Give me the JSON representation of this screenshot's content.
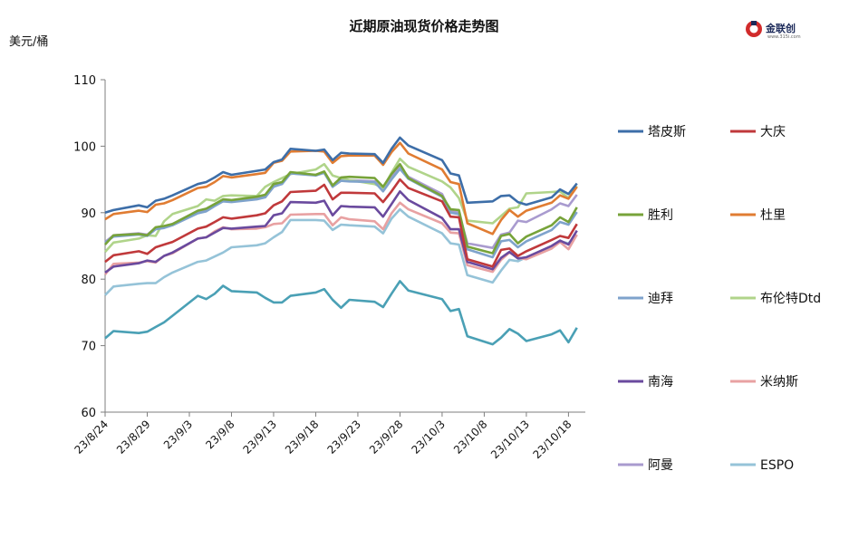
{
  "chart_data": {
    "type": "line",
    "title": "近期原油现货价格走势图",
    "ylabel": "美元/桶",
    "xlabel": "",
    "ylim": [
      60,
      110
    ],
    "yticks": [
      60,
      70,
      80,
      90,
      100,
      110
    ],
    "xrange": [
      "2023-08-24",
      "2023-10-20"
    ],
    "xticks": [
      {
        "label": "23/8/24",
        "date": "2023-08-24"
      },
      {
        "label": "23/8/29",
        "date": "2023-08-29"
      },
      {
        "label": "23/9/3",
        "date": "2023-09-03"
      },
      {
        "label": "23/9/8",
        "date": "2023-09-08"
      },
      {
        "label": "23/9/13",
        "date": "2023-09-13"
      },
      {
        "label": "23/9/18",
        "date": "2023-09-18"
      },
      {
        "label": "23/9/23",
        "date": "2023-09-23"
      },
      {
        "label": "23/9/28",
        "date": "2023-09-28"
      },
      {
        "label": "23/10/3",
        "date": "2023-10-03"
      },
      {
        "label": "23/10/8",
        "date": "2023-10-08"
      },
      {
        "label": "23/10/13",
        "date": "2023-10-13"
      },
      {
        "label": "23/10/18",
        "date": "2023-10-18"
      }
    ],
    "grid": "horizontal",
    "legend_position": "right",
    "dates": [
      "2023-08-24",
      "2023-08-25",
      "2023-08-28",
      "2023-08-29",
      "2023-08-30",
      "2023-08-31",
      "2023-09-01",
      "2023-09-04",
      "2023-09-05",
      "2023-09-06",
      "2023-09-07",
      "2023-09-08",
      "2023-09-11",
      "2023-09-12",
      "2023-09-13",
      "2023-09-14",
      "2023-09-15",
      "2023-09-18",
      "2023-09-19",
      "2023-09-20",
      "2023-09-21",
      "2023-09-22",
      "2023-09-25",
      "2023-09-26",
      "2023-09-27",
      "2023-09-28",
      "2023-09-29",
      "2023-10-03",
      "2023-10-04",
      "2023-10-05",
      "2023-10-06",
      "2023-10-09",
      "2023-10-10",
      "2023-10-11",
      "2023-10-12",
      "2023-10-13",
      "2023-10-16",
      "2023-10-17",
      "2023-10-18",
      "2023-10-19"
    ],
    "series": [
      {
        "name": "塔皮斯",
        "color": "#3d6ea8",
        "values": [
          90.0,
          90.4,
          91.1,
          90.8,
          91.8,
          92.1,
          92.6,
          94.3,
          94.6,
          95.3,
          96.1,
          95.7,
          96.3,
          96.5,
          97.6,
          98.0,
          99.6,
          99.3,
          99.5,
          97.9,
          99.0,
          98.9,
          98.8,
          97.5,
          99.6,
          101.3,
          100.1,
          97.9,
          95.9,
          95.6,
          91.5,
          91.7,
          92.5,
          92.6,
          91.6,
          91.2,
          92.3,
          93.5,
          92.8,
          94.4
        ]
      },
      {
        "name": "大庆",
        "color": "#c0393b",
        "values": [
          82.6,
          83.6,
          84.2,
          83.8,
          84.8,
          85.2,
          85.6,
          87.6,
          87.9,
          88.6,
          89.3,
          89.1,
          89.6,
          89.9,
          91.1,
          91.7,
          93.1,
          93.3,
          94.2,
          92.0,
          93.0,
          93.0,
          92.9,
          91.6,
          93.2,
          95.0,
          93.7,
          91.7,
          89.4,
          89.3,
          83.0,
          81.9,
          84.4,
          84.6,
          83.5,
          84.2,
          85.9,
          86.5,
          86.2,
          88.3
        ]
      },
      {
        "name": "胜利",
        "color": "#77a33a",
        "values": [
          85.2,
          86.6,
          86.8,
          86.6,
          87.8,
          88.0,
          88.3,
          90.3,
          90.6,
          91.3,
          92.0,
          91.9,
          92.4,
          92.7,
          94.3,
          94.6,
          96.1,
          95.7,
          96.2,
          94.1,
          95.3,
          95.4,
          95.2,
          93.9,
          95.8,
          97.3,
          95.2,
          92.5,
          90.5,
          90.4,
          84.9,
          83.9,
          86.5,
          86.8,
          85.4,
          86.4,
          88.1,
          89.3,
          88.6,
          90.8
        ]
      },
      {
        "name": "杜里",
        "color": "#e07c32",
        "values": [
          89.0,
          89.8,
          90.3,
          90.1,
          91.2,
          91.4,
          91.9,
          93.7,
          93.9,
          94.6,
          95.5,
          95.3,
          95.8,
          96.0,
          97.5,
          97.8,
          99.2,
          99.3,
          99.2,
          97.5,
          98.5,
          98.6,
          98.6,
          97.2,
          99.1,
          100.5,
          98.9,
          96.5,
          94.6,
          94.3,
          88.4,
          86.8,
          88.9,
          90.4,
          89.4,
          90.3,
          91.5,
          92.6,
          92.1,
          93.9
        ]
      },
      {
        "name": "迪拜",
        "color": "#7fa3cc",
        "values": [
          85.5,
          86.4,
          86.7,
          86.5,
          87.5,
          87.7,
          88.1,
          89.9,
          90.2,
          91.0,
          91.7,
          91.6,
          92.0,
          92.3,
          93.9,
          94.3,
          95.9,
          95.6,
          96.0,
          93.9,
          94.8,
          94.7,
          94.6,
          93.2,
          95.0,
          96.6,
          95.1,
          92.4,
          90.0,
          89.8,
          84.5,
          83.3,
          85.7,
          85.9,
          84.8,
          85.7,
          87.4,
          88.6,
          88.2,
          90.1
        ]
      },
      {
        "name": "布伦特Dtd",
        "color": "#b0d48a",
        "values": [
          84.1,
          85.5,
          86.1,
          86.6,
          86.5,
          88.7,
          89.8,
          91.0,
          92.0,
          91.8,
          92.5,
          92.6,
          92.5,
          93.9,
          94.6,
          95.2,
          95.8,
          96.5,
          97.3,
          95.6,
          95.2,
          94.9,
          94.3,
          93.7,
          96.0,
          98.1,
          96.9,
          94.7,
          93.8,
          92.2,
          88.8,
          88.4,
          89.5,
          90.6,
          90.8,
          92.9,
          93.1,
          93.2,
          92.2,
          94.0
        ]
      },
      {
        "name": "南海",
        "color": "#6a4a9e",
        "values": [
          81.0,
          81.9,
          82.4,
          82.8,
          82.6,
          83.5,
          84.0,
          86.1,
          86.3,
          87.0,
          87.7,
          87.6,
          87.9,
          88.0,
          89.6,
          89.9,
          91.6,
          91.5,
          91.8,
          89.6,
          91.0,
          90.9,
          90.8,
          89.4,
          91.3,
          93.2,
          91.9,
          89.2,
          87.5,
          87.5,
          82.6,
          81.5,
          83.2,
          84.1,
          83.1,
          83.3,
          85.0,
          85.8,
          85.2,
          87.3
        ]
      },
      {
        "name": "米纳斯",
        "color": "#e8a1a2",
        "values": [
          80.7,
          82.3,
          82.5,
          82.7,
          82.5,
          83.5,
          83.9,
          86.1,
          86.3,
          87.2,
          87.8,
          87.5,
          87.6,
          87.8,
          88.3,
          88.4,
          89.7,
          89.8,
          89.8,
          88.1,
          89.3,
          89.0,
          88.7,
          87.5,
          89.9,
          91.5,
          90.5,
          88.4,
          87.0,
          86.9,
          82.1,
          81.1,
          82.9,
          84.0,
          83.2,
          83.0,
          84.6,
          85.6,
          84.5,
          86.7
        ]
      },
      {
        "name": "阿曼",
        "color": "#a99bcf",
        "values": [
          85.6,
          86.6,
          86.9,
          86.7,
          87.7,
          87.9,
          88.3,
          90.1,
          90.4,
          91.1,
          91.8,
          91.7,
          92.1,
          92.4,
          94.1,
          94.4,
          95.9,
          95.7,
          96.1,
          93.9,
          95.0,
          94.9,
          94.7,
          93.4,
          95.3,
          96.9,
          95.4,
          92.8,
          90.2,
          90.0,
          85.4,
          84.7,
          86.7,
          87.0,
          88.8,
          88.6,
          90.5,
          91.4,
          91.0,
          92.7
        ]
      },
      {
        "name": "ESPO",
        "color": "#95c3d8",
        "values": [
          77.6,
          78.9,
          79.3,
          79.4,
          79.4,
          80.3,
          81.0,
          82.6,
          82.8,
          83.4,
          84.0,
          84.8,
          85.1,
          85.4,
          86.3,
          87.1,
          88.9,
          88.9,
          88.8,
          87.4,
          88.2,
          88.1,
          87.9,
          86.9,
          89.1,
          90.5,
          89.4,
          86.9,
          85.4,
          85.2,
          80.6,
          79.5,
          81.3,
          82.9,
          82.7,
          83.3,
          84.8,
          85.7,
          85.4,
          86.6
        ]
      }
    ],
    "extra_series": {
      "name": "",
      "color": "#4aa0b5",
      "values": [
        71.1,
        72.2,
        71.9,
        72.1,
        72.8,
        73.5,
        74.5,
        77.5,
        77.0,
        77.8,
        79.0,
        78.2,
        78.0,
        77.2,
        76.5,
        76.5,
        77.5,
        78.0,
        78.5,
        76.9,
        75.7,
        76.9,
        76.6,
        75.8,
        77.8,
        79.7,
        78.3,
        77.0,
        75.2,
        75.5,
        71.4,
        70.2,
        71.2,
        72.5,
        71.8,
        70.7,
        71.7,
        72.3,
        70.5,
        72.7
      ]
    }
  },
  "logo": {
    "text": "金联创",
    "sub": "www.315i.com"
  },
  "colors": {
    "axis": "#7f7f7f",
    "background": "#ffffff"
  }
}
